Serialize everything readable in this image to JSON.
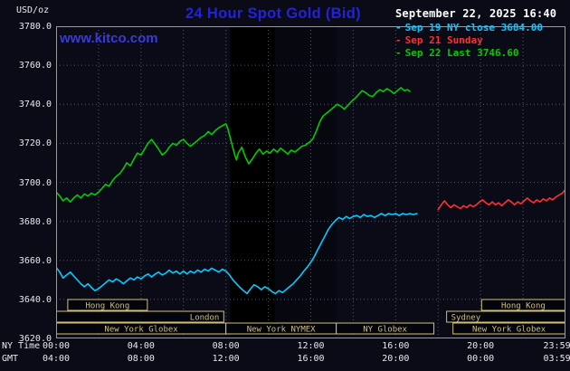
{
  "header": {
    "unit_label": "USD/oz",
    "title": "24 Hour Spot Gold (Bid)",
    "datetime": "September 22, 2025 16:40",
    "watermark": "www.kitco.com"
  },
  "legend": [
    {
      "label": "Sep 19 NY close 3684.00",
      "color": "#00ccff"
    },
    {
      "label": "Sep 21 Sunday",
      "color": "#ff3030"
    },
    {
      "label": "Sep 22 Last 3746.60",
      "color": "#00cc00"
    }
  ],
  "axes": {
    "ny_time_label": "NY Time",
    "gmt_label": "GMT",
    "x_ticks_ny": [
      "00:00",
      "04:00",
      "08:00",
      "12:00",
      "16:00",
      "20:00",
      "23:59"
    ],
    "x_ticks_gmt": [
      "04:00",
      "08:00",
      "12:00",
      "16:00",
      "20:00",
      "00:00",
      "03:59"
    ],
    "y_ticks": [
      "3780.0",
      "3760.0",
      "3740.0",
      "3720.0",
      "3700.0",
      "3680.0",
      "3660.0",
      "3640.0",
      "3620.0"
    ]
  },
  "colors": {
    "bg": "#0b0b18",
    "band": "#000000",
    "title": "#2222dd",
    "watermark": "#3a3ad8",
    "grid": "#55556a",
    "border": "#9a9a9a",
    "session": "#cfc178",
    "axis-text": "#e9e9e9"
  },
  "chart_data": {
    "type": "line",
    "title": "24 Hour Spot Gold (Bid)",
    "ylabel": "USD/oz",
    "ylim": [
      3620,
      3780
    ],
    "xlim_hours": [
      0,
      24
    ],
    "grid": true,
    "legend_position": "top-right",
    "x_unit": "NY time (hours)",
    "bands": [
      {
        "from": 8.2,
        "to": 10.3,
        "color": "#000000"
      },
      {
        "from": 10.3,
        "to": 13.2,
        "color": "rgba(0,0,0,0.35)"
      }
    ],
    "sessions": [
      {
        "row": 0,
        "from": 0.55,
        "to": 4.3,
        "label": "Hong Kong",
        "align": "center"
      },
      {
        "row": 0,
        "from": 20.05,
        "to": 23.98,
        "label": "Hong Kong",
        "align": "center"
      },
      {
        "row": 1,
        "from": 0.02,
        "to": 7.9,
        "label": "London",
        "align": "right"
      },
      {
        "row": 1,
        "from": 18.4,
        "to": 23.98,
        "label": "Sydney",
        "align": "left"
      },
      {
        "row": 2,
        "from": 0.02,
        "to": 8.0,
        "label": "New York Globex",
        "align": "center"
      },
      {
        "row": 2,
        "from": 8.0,
        "to": 13.2,
        "label": "New York NYMEX",
        "align": "center"
      },
      {
        "row": 2,
        "from": 13.2,
        "to": 17.8,
        "label": "NY Globex",
        "align": "center"
      },
      {
        "row": 2,
        "from": 18.7,
        "to": 23.98,
        "label": "New York Globex",
        "align": "center"
      }
    ],
    "series": [
      {
        "id": "sep19",
        "name": "Sep 19 NY close",
        "color": "#00ccff",
        "close": 3684.0,
        "points": [
          [
            0,
            3656.5
          ],
          [
            0.17,
            3654
          ],
          [
            0.33,
            3651
          ],
          [
            0.5,
            3652.5
          ],
          [
            0.67,
            3654
          ],
          [
            0.83,
            3652
          ],
          [
            1,
            3650
          ],
          [
            1.17,
            3648
          ],
          [
            1.33,
            3646.5
          ],
          [
            1.5,
            3648
          ],
          [
            1.67,
            3646
          ],
          [
            1.83,
            3644.5
          ],
          [
            2,
            3645.5
          ],
          [
            2.17,
            3647
          ],
          [
            2.33,
            3648.5
          ],
          [
            2.5,
            3650
          ],
          [
            2.67,
            3649
          ],
          [
            2.83,
            3650.5
          ],
          [
            3,
            3649.5
          ],
          [
            3.17,
            3648
          ],
          [
            3.33,
            3649.5
          ],
          [
            3.5,
            3651
          ],
          [
            3.67,
            3650
          ],
          [
            3.83,
            3651.5
          ],
          [
            4,
            3650.5
          ],
          [
            4.17,
            3652
          ],
          [
            4.33,
            3653
          ],
          [
            4.5,
            3651.5
          ],
          [
            4.67,
            3653
          ],
          [
            4.83,
            3654
          ],
          [
            5,
            3652.5
          ],
          [
            5.17,
            3653.5
          ],
          [
            5.33,
            3655
          ],
          [
            5.5,
            3653.5
          ],
          [
            5.67,
            3654.5
          ],
          [
            5.83,
            3653
          ],
          [
            6,
            3654.5
          ],
          [
            6.17,
            3653
          ],
          [
            6.33,
            3654.5
          ],
          [
            6.5,
            3653.5
          ],
          [
            6.67,
            3655
          ],
          [
            6.83,
            3654
          ],
          [
            7,
            3655.5
          ],
          [
            7.17,
            3654.5
          ],
          [
            7.33,
            3656
          ],
          [
            7.5,
            3655
          ],
          [
            7.67,
            3654
          ],
          [
            7.83,
            3655.5
          ],
          [
            8,
            3654.5
          ],
          [
            8.17,
            3652.5
          ],
          [
            8.33,
            3650
          ],
          [
            8.5,
            3648
          ],
          [
            8.67,
            3646
          ],
          [
            8.83,
            3644.5
          ],
          [
            9,
            3643
          ],
          [
            9.17,
            3645.5
          ],
          [
            9.33,
            3647.5
          ],
          [
            9.5,
            3646.5
          ],
          [
            9.67,
            3645
          ],
          [
            9.83,
            3646.5
          ],
          [
            10,
            3645.5
          ],
          [
            10.17,
            3644
          ],
          [
            10.33,
            3643
          ],
          [
            10.5,
            3644.5
          ],
          [
            10.67,
            3643.5
          ],
          [
            10.83,
            3645
          ],
          [
            11,
            3646.5
          ],
          [
            11.17,
            3648
          ],
          [
            11.33,
            3650
          ],
          [
            11.5,
            3652
          ],
          [
            11.67,
            3654.5
          ],
          [
            11.83,
            3656.5
          ],
          [
            12,
            3659
          ],
          [
            12.17,
            3662
          ],
          [
            12.33,
            3665.5
          ],
          [
            12.5,
            3669
          ],
          [
            12.67,
            3672.5
          ],
          [
            12.83,
            3676
          ],
          [
            13,
            3678.5
          ],
          [
            13.17,
            3680.5
          ],
          [
            13.33,
            3682
          ],
          [
            13.5,
            3681
          ],
          [
            13.67,
            3682.5
          ],
          [
            13.83,
            3681.5
          ],
          [
            14,
            3682.5
          ],
          [
            14.17,
            3683
          ],
          [
            14.33,
            3682
          ],
          [
            14.5,
            3683.5
          ],
          [
            14.67,
            3682.5
          ],
          [
            14.83,
            3683
          ],
          [
            15,
            3682
          ],
          [
            15.17,
            3683
          ],
          [
            15.33,
            3684
          ],
          [
            15.5,
            3683
          ],
          [
            15.67,
            3684
          ],
          [
            15.83,
            3683.5
          ],
          [
            16,
            3684
          ],
          [
            16.17,
            3683
          ],
          [
            16.33,
            3684
          ],
          [
            16.5,
            3683.5
          ],
          [
            16.67,
            3684
          ],
          [
            16.83,
            3683.5
          ],
          [
            17,
            3684
          ]
        ]
      },
      {
        "id": "sep21",
        "name": "Sep 21 Sunday",
        "color": "#ff3030",
        "points": [
          [
            18,
            3686
          ],
          [
            18.15,
            3688.5
          ],
          [
            18.3,
            3690.5
          ],
          [
            18.45,
            3688.5
          ],
          [
            18.6,
            3687
          ],
          [
            18.75,
            3688.5
          ],
          [
            18.9,
            3687.5
          ],
          [
            19.05,
            3686.5
          ],
          [
            19.2,
            3688
          ],
          [
            19.35,
            3687
          ],
          [
            19.5,
            3688.5
          ],
          [
            19.65,
            3687.5
          ],
          [
            19.8,
            3688.5
          ],
          [
            19.95,
            3690
          ],
          [
            20.1,
            3691
          ],
          [
            20.25,
            3689.5
          ],
          [
            20.4,
            3688.5
          ],
          [
            20.55,
            3690
          ],
          [
            20.7,
            3688.5
          ],
          [
            20.85,
            3689.5
          ],
          [
            21,
            3688
          ],
          [
            21.15,
            3689.5
          ],
          [
            21.3,
            3691
          ],
          [
            21.45,
            3690
          ],
          [
            21.6,
            3688.5
          ],
          [
            21.75,
            3690
          ],
          [
            21.9,
            3689
          ],
          [
            22.05,
            3690.5
          ],
          [
            22.2,
            3692
          ],
          [
            22.35,
            3690.5
          ],
          [
            22.5,
            3689.5
          ],
          [
            22.65,
            3691
          ],
          [
            22.8,
            3690
          ],
          [
            22.95,
            3691.5
          ],
          [
            23.1,
            3690.5
          ],
          [
            23.25,
            3692
          ],
          [
            23.4,
            3691
          ],
          [
            23.55,
            3692.5
          ],
          [
            23.7,
            3693.5
          ],
          [
            23.85,
            3694.5
          ],
          [
            23.98,
            3696
          ]
        ]
      },
      {
        "id": "sep22",
        "name": "Sep 22",
        "color": "#00cc00",
        "last": 3746.6,
        "points": [
          [
            0,
            3695
          ],
          [
            0.17,
            3693
          ],
          [
            0.33,
            3690.5
          ],
          [
            0.5,
            3692
          ],
          [
            0.67,
            3690
          ],
          [
            0.83,
            3692
          ],
          [
            1,
            3693.5
          ],
          [
            1.17,
            3692
          ],
          [
            1.33,
            3694
          ],
          [
            1.5,
            3693
          ],
          [
            1.67,
            3694.5
          ],
          [
            1.83,
            3693.5
          ],
          [
            2,
            3695
          ],
          [
            2.17,
            3697
          ],
          [
            2.33,
            3699
          ],
          [
            2.5,
            3698
          ],
          [
            2.67,
            3701
          ],
          [
            2.83,
            3703
          ],
          [
            3,
            3704.5
          ],
          [
            3.17,
            3707
          ],
          [
            3.33,
            3710
          ],
          [
            3.5,
            3708.5
          ],
          [
            3.67,
            3712
          ],
          [
            3.83,
            3715
          ],
          [
            4,
            3714
          ],
          [
            4.17,
            3717
          ],
          [
            4.33,
            3720
          ],
          [
            4.5,
            3722
          ],
          [
            4.67,
            3719.5
          ],
          [
            4.83,
            3717
          ],
          [
            5,
            3714
          ],
          [
            5.17,
            3715.5
          ],
          [
            5.33,
            3718
          ],
          [
            5.5,
            3720
          ],
          [
            5.67,
            3719
          ],
          [
            5.83,
            3721
          ],
          [
            6,
            3722
          ],
          [
            6.17,
            3720
          ],
          [
            6.33,
            3718.5
          ],
          [
            6.5,
            3720
          ],
          [
            6.67,
            3721.5
          ],
          [
            6.83,
            3723
          ],
          [
            7,
            3724
          ],
          [
            7.17,
            3726
          ],
          [
            7.33,
            3724.5
          ],
          [
            7.5,
            3726.5
          ],
          [
            7.67,
            3728
          ],
          [
            7.83,
            3729
          ],
          [
            8,
            3730
          ],
          [
            8.08,
            3728
          ],
          [
            8.25,
            3721
          ],
          [
            8.42,
            3714
          ],
          [
            8.5,
            3711.5
          ],
          [
            8.58,
            3715
          ],
          [
            8.75,
            3718
          ],
          [
            8.92,
            3713
          ],
          [
            9.08,
            3709.5
          ],
          [
            9.25,
            3712
          ],
          [
            9.42,
            3715
          ],
          [
            9.58,
            3717
          ],
          [
            9.75,
            3714.5
          ],
          [
            9.92,
            3716
          ],
          [
            10.08,
            3715
          ],
          [
            10.25,
            3717
          ],
          [
            10.42,
            3715.5
          ],
          [
            10.58,
            3717.5
          ],
          [
            10.75,
            3716
          ],
          [
            10.92,
            3714.5
          ],
          [
            11.08,
            3716.5
          ],
          [
            11.25,
            3715.5
          ],
          [
            11.42,
            3717
          ],
          [
            11.58,
            3718.5
          ],
          [
            11.75,
            3719
          ],
          [
            11.92,
            3720.5
          ],
          [
            12.08,
            3722
          ],
          [
            12.25,
            3726
          ],
          [
            12.42,
            3731
          ],
          [
            12.58,
            3734
          ],
          [
            12.75,
            3735.5
          ],
          [
            12.92,
            3737
          ],
          [
            13.08,
            3738.5
          ],
          [
            13.25,
            3740
          ],
          [
            13.42,
            3739
          ],
          [
            13.58,
            3737.5
          ],
          [
            13.75,
            3739.5
          ],
          [
            13.92,
            3741.5
          ],
          [
            14.08,
            3743
          ],
          [
            14.25,
            3745
          ],
          [
            14.42,
            3747
          ],
          [
            14.58,
            3746
          ],
          [
            14.75,
            3744.5
          ],
          [
            14.92,
            3744
          ],
          [
            15.08,
            3746
          ],
          [
            15.25,
            3747.5
          ],
          [
            15.42,
            3746.5
          ],
          [
            15.58,
            3748
          ],
          [
            15.75,
            3747
          ],
          [
            15.92,
            3745.5
          ],
          [
            16.08,
            3747
          ],
          [
            16.25,
            3748.5
          ],
          [
            16.42,
            3747
          ],
          [
            16.55,
            3747.5
          ],
          [
            16.67,
            3746.6
          ]
        ]
      }
    ]
  }
}
